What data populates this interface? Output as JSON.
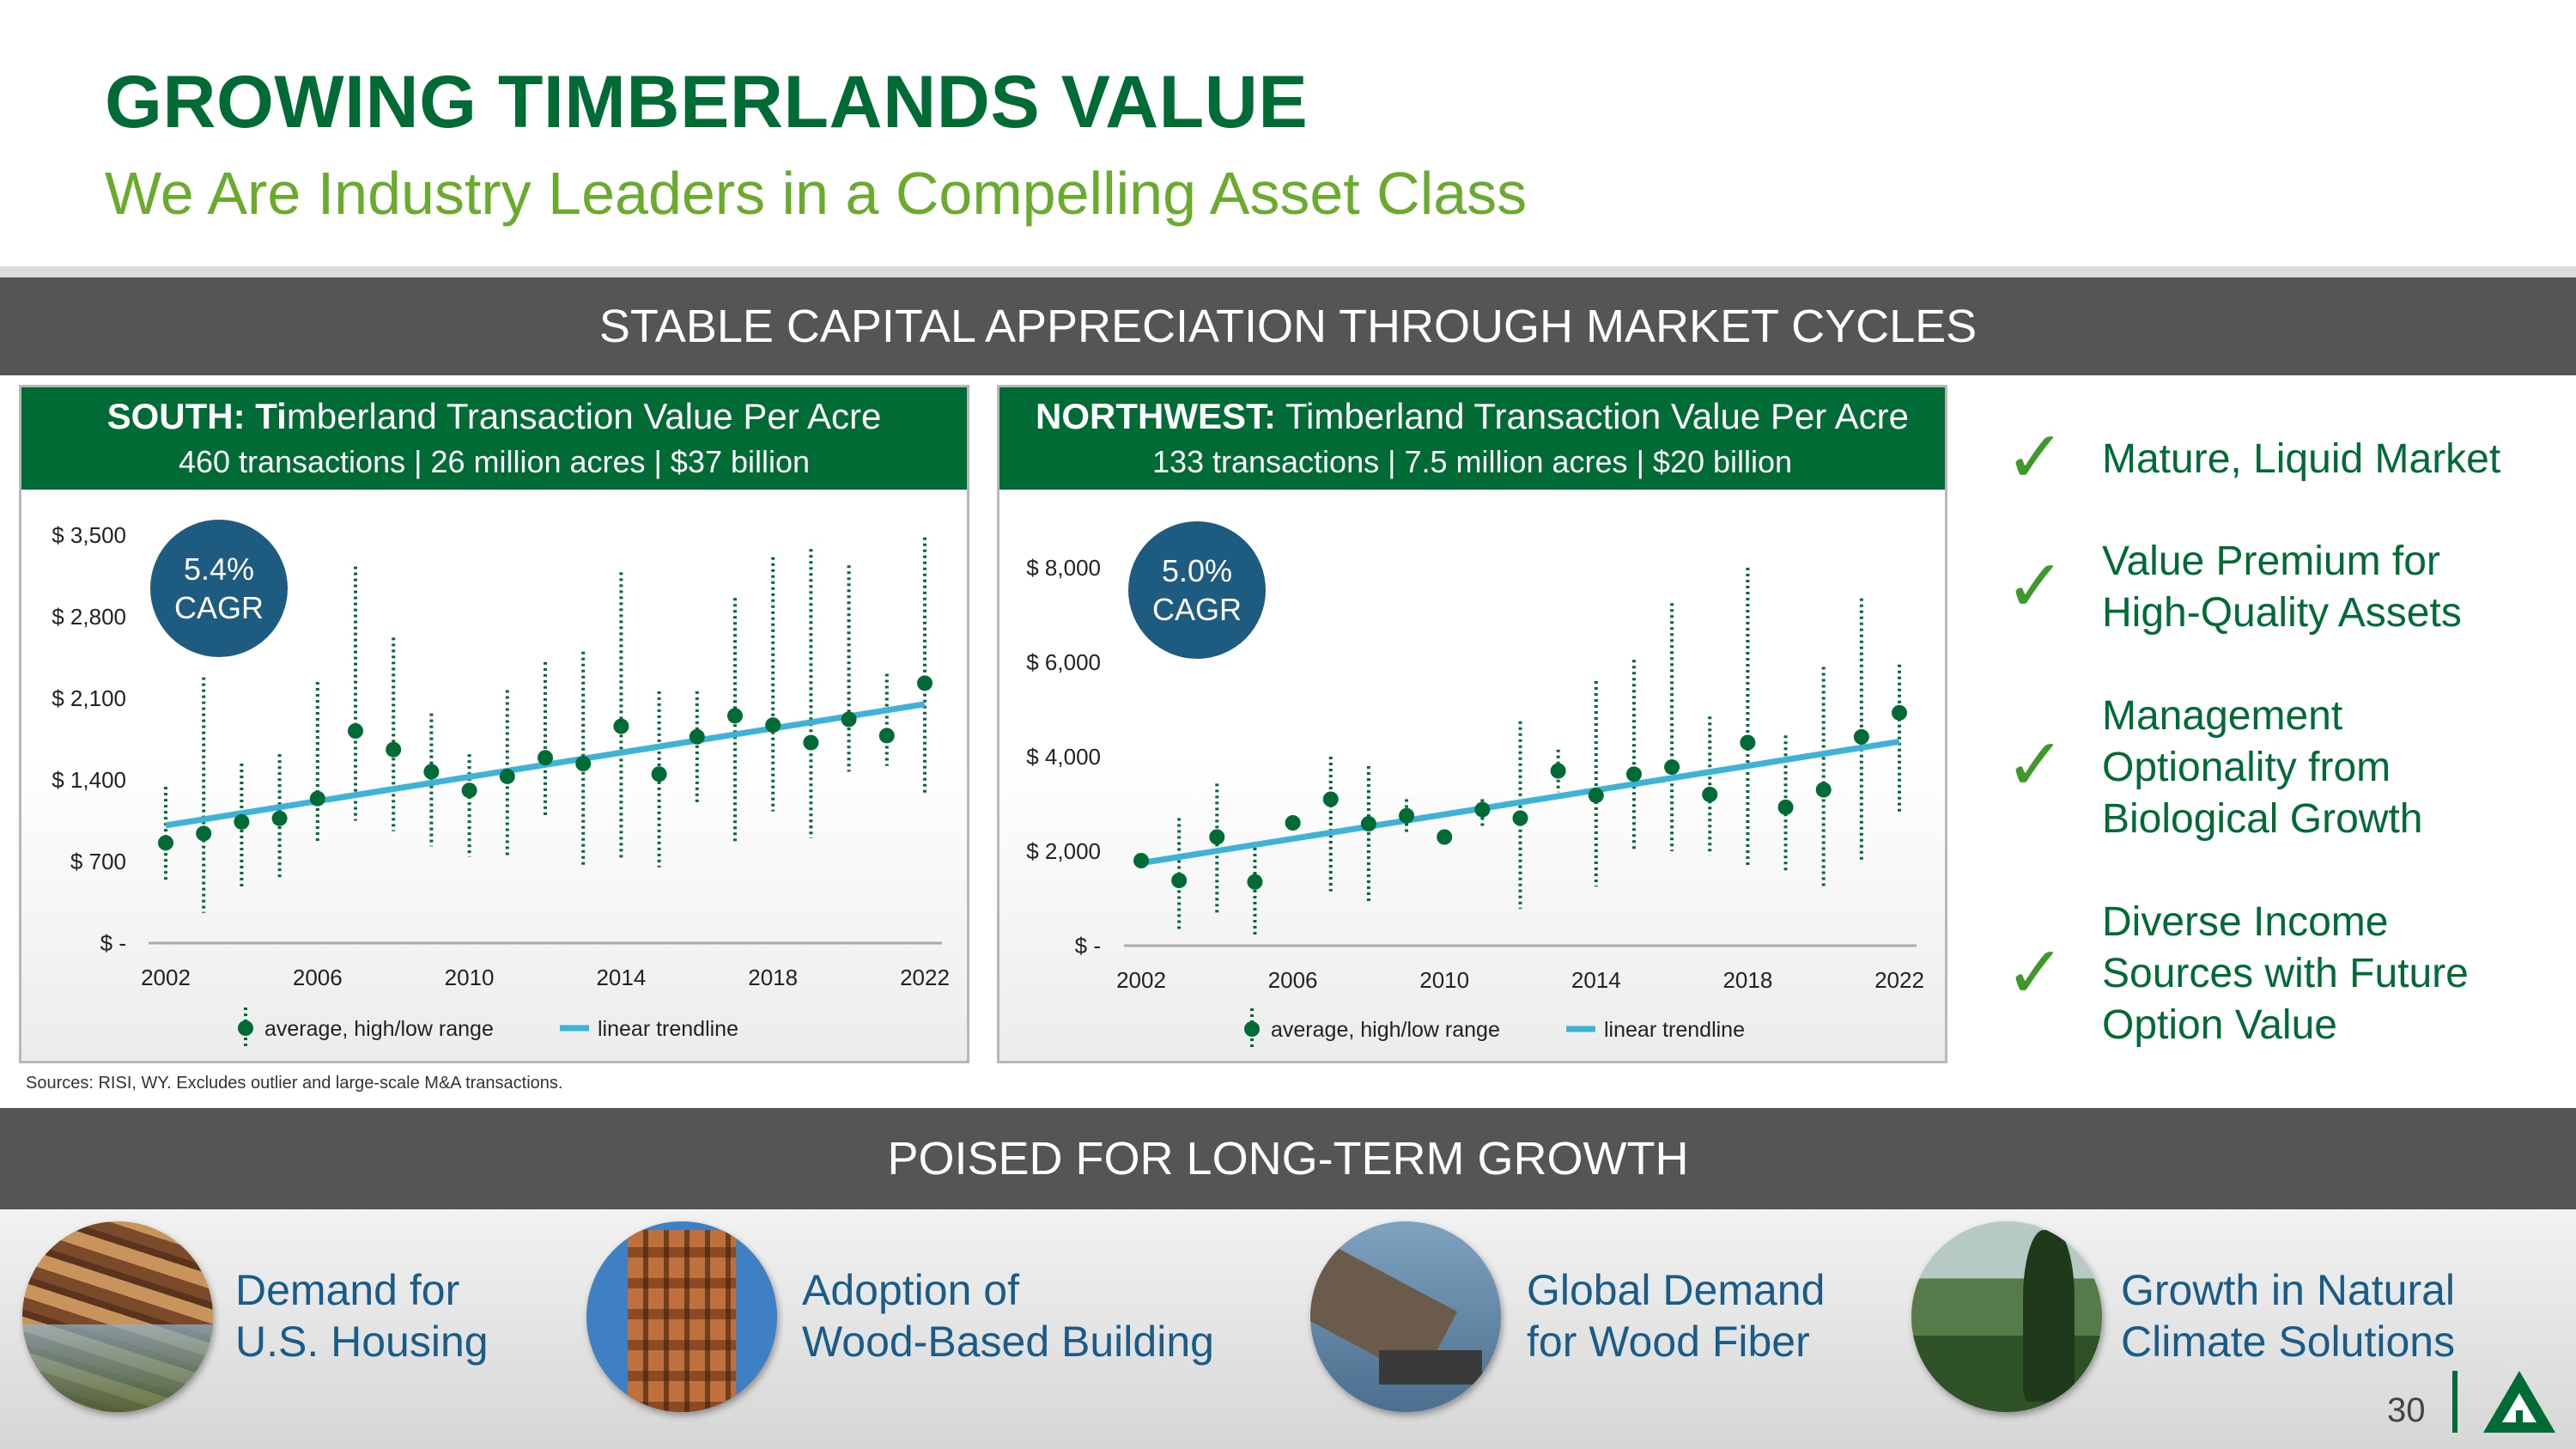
{
  "header": {
    "title": "GROWING TIMBERLANDS VALUE",
    "subtitle": "We Are Industry Leaders in a Compelling Asset Class"
  },
  "section1_title": "STABLE CAPITAL APPRECIATION THROUGH MARKET CYCLES",
  "section2_title": "POISED FOR LONG-TERM GROWTH",
  "source_note": "Sources: RISI, WY. Excludes outlier and large-scale M&A transactions.",
  "colors": {
    "green": "#006b35",
    "light_green": "#6aaa2c",
    "trend": "#3fb2d8",
    "badge": "#1d5b80"
  },
  "south": {
    "header_bold": "SOUTH: Ti",
    "header_rest": "mberland Transaction Value Per Acre",
    "stats": "460 transactions  |  26 million acres  |  $37 billion",
    "cagr_value": "5.4%",
    "cagr_label": "CAGR"
  },
  "northwest": {
    "header_bold": "NORTHWEST:",
    "header_rest": " Timberland Transaction Value Per Acre",
    "stats": "133 transactions  |  7.5 million acres  |  $20 billion",
    "cagr_value": "5.0%",
    "cagr_label": "CAGR"
  },
  "chart_data": [
    {
      "type": "scatter",
      "title": "SOUTH: Timberland Transaction Value Per Acre",
      "x_tick_labels": [
        "2002",
        "2006",
        "2010",
        "2014",
        "2018",
        "2022"
      ],
      "y_ticks": [
        0,
        700,
        1400,
        2100,
        2800,
        3500
      ],
      "y_tick_labels": [
        "$ -",
        "$ 700",
        "$ 1,400",
        "$ 2,100",
        "$ 2,800",
        "$ 3,500"
      ],
      "ylim": [
        0,
        3500
      ],
      "xlim": [
        2002,
        2022
      ],
      "legend": [
        "average, high/low range",
        "linear trendline"
      ],
      "years": [
        2002,
        2003,
        2004,
        2005,
        2006,
        2007,
        2008,
        2009,
        2010,
        2011,
        2012,
        2013,
        2014,
        2015,
        2016,
        2017,
        2018,
        2019,
        2020,
        2021,
        2022
      ],
      "average": [
        860,
        940,
        1040,
        1070,
        1240,
        1820,
        1660,
        1470,
        1310,
        1430,
        1590,
        1540,
        1860,
        1450,
        1770,
        1950,
        1870,
        1720,
        1920,
        1780,
        2230
      ],
      "high": [
        1340,
        2280,
        1540,
        1620,
        2240,
        3230,
        2620,
        1970,
        1620,
        2170,
        2410,
        2500,
        3180,
        2160,
        2160,
        2960,
        3310,
        3380,
        3240,
        2310,
        3480
      ],
      "low": [
        520,
        260,
        470,
        550,
        870,
        1050,
        960,
        830,
        740,
        740,
        1080,
        650,
        720,
        650,
        1200,
        860,
        1130,
        900,
        1470,
        1520,
        1280
      ],
      "trendline": [
        1010,
        2050
      ]
    },
    {
      "type": "scatter",
      "title": "NORTHWEST: Timberland Transaction Value Per Acre",
      "x_tick_labels": [
        "2002",
        "2006",
        "2010",
        "2014",
        "2018",
        "2022"
      ],
      "y_ticks": [
        0,
        2000,
        4000,
        6000,
        8000
      ],
      "y_tick_labels": [
        "$ -",
        "$ 2,000",
        "$ 4,000",
        "$ 6,000",
        "$ 8,000"
      ],
      "ylim": [
        0,
        8000
      ],
      "xlim": [
        2002,
        2022
      ],
      "legend": [
        "average, high/low range",
        "linear trendline"
      ],
      "years": [
        2002,
        2003,
        2004,
        2005,
        2006,
        2007,
        2008,
        2009,
        2010,
        2011,
        2012,
        2013,
        2014,
        2015,
        2016,
        2017,
        2018,
        2019,
        2020,
        2021,
        2022
      ],
      "average": [
        1800,
        1380,
        2300,
        1350,
        2600,
        3100,
        2580,
        2750,
        2300,
        2880,
        2700,
        3700,
        3180,
        3630,
        3780,
        3200,
        4300,
        2930,
        3300,
        4420,
        4930
      ],
      "high": [
        1800,
        2700,
        3430,
        2200,
        2700,
        4000,
        3800,
        3100,
        2300,
        3100,
        4750,
        4150,
        5600,
        6050,
        7250,
        4850,
        8000,
        4450,
        5900,
        7350,
        5950
      ],
      "low": [
        1800,
        300,
        630,
        200,
        2500,
        1150,
        900,
        2380,
        2300,
        2480,
        780,
        3250,
        1250,
        2000,
        2000,
        1920,
        1700,
        1550,
        1200,
        1750,
        2800
      ],
      "trendline": [
        1750,
        4320
      ]
    }
  ],
  "bullets": [
    {
      "lines": [
        "Mature, Liquid Market"
      ]
    },
    {
      "lines": [
        "Value Premium for",
        "High-Quality Assets"
      ]
    },
    {
      "lines": [
        "Management",
        "Optionality from",
        "Biological Growth"
      ]
    },
    {
      "lines": [
        "Diverse Income",
        "Sources with Future",
        "Option Value"
      ]
    }
  ],
  "growth_items": [
    {
      "line1": "Demand for",
      "line2": "U.S. Housing"
    },
    {
      "line1": "Adoption of",
      "line2": "Wood-Based Building"
    },
    {
      "line1": "Global Demand",
      "line2": "for Wood Fiber"
    },
    {
      "line1": "Growth in Natural",
      "line2": "Climate Solutions"
    }
  ],
  "page_number": "30"
}
